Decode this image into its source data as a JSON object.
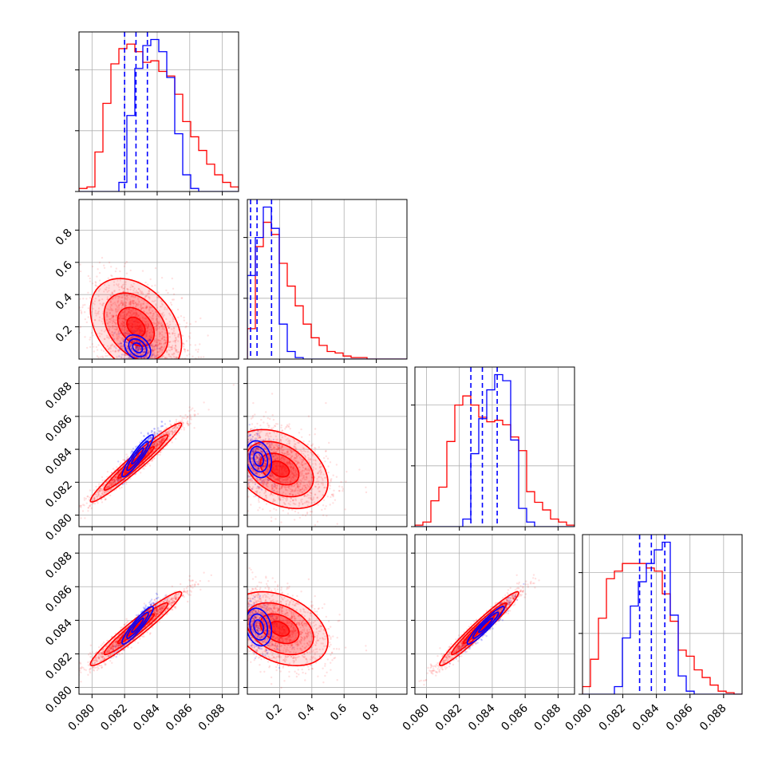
{
  "chart_data": {
    "type": "corner",
    "grid": true,
    "legend": "none",
    "colors": {
      "series_a": "#ff0000",
      "series_b": "#0000ff"
    },
    "params": [
      {
        "range": [
          0.0792,
          0.089
        ],
        "ticks": [
          0.08,
          0.082,
          0.084,
          0.086,
          0.088
        ],
        "tick_labels": [
          "0.080",
          "0.082",
          "0.084",
          "0.086",
          "0.088"
        ]
      },
      {
        "range": [
          0.0,
          0.99
        ],
        "ticks": [
          0.2,
          0.4,
          0.6,
          0.8
        ],
        "tick_labels": [
          "0.2",
          "0.4",
          "0.6",
          "0.8"
        ]
      },
      {
        "range": [
          0.0793,
          0.089
        ],
        "ticks": [
          0.08,
          0.082,
          0.084,
          0.086,
          0.088
        ],
        "tick_labels": [
          "0.080",
          "0.082",
          "0.084",
          "0.086",
          "0.088"
        ]
      },
      {
        "range": [
          0.0796,
          0.0891
        ],
        "ticks": [
          0.08,
          0.082,
          0.084,
          0.086,
          0.088
        ],
        "tick_labels": [
          "0.080",
          "0.082",
          "0.084",
          "0.086",
          "0.088"
        ]
      }
    ],
    "histograms": [
      {
        "param": 0,
        "red": {
          "edges_start": 0.0792,
          "bin_width": 0.00049,
          "counts": [
            2,
            3,
            26,
            58,
            84,
            94,
            97,
            92,
            85,
            86,
            79,
            76,
            64,
            46,
            36,
            27,
            18,
            11,
            6,
            3,
            1
          ]
        },
        "blue": {
          "edges_start": 0.0792,
          "bin_width": 0.00049,
          "counts": [
            0,
            0,
            0,
            0,
            0,
            6,
            50,
            81,
            96,
            100,
            92,
            75,
            38,
            11,
            2,
            0,
            0,
            0,
            0,
            0,
            0
          ]
        },
        "quantiles": [
          0.082,
          0.0827,
          0.0834
        ]
      },
      {
        "param": 1,
        "red": {
          "edges_start": 0.0,
          "bin_width": 0.0495,
          "counts": [
            20,
            74,
            90,
            82,
            63,
            48,
            35,
            23,
            14,
            9,
            5,
            4,
            2,
            1,
            1,
            0,
            0,
            0,
            0,
            0
          ]
        },
        "blue": {
          "edges_start": 0.0,
          "bin_width": 0.0495,
          "counts": [
            55,
            80,
            100,
            86,
            23,
            5,
            1,
            0,
            0,
            0,
            0,
            0,
            0,
            0,
            0,
            0,
            0,
            0,
            0,
            0
          ]
        },
        "quantiles": [
          0.02,
          0.06,
          0.15
        ]
      },
      {
        "param": 2,
        "red": {
          "edges_start": 0.0793,
          "bin_width": 0.000485,
          "counts": [
            1,
            3,
            17,
            26,
            56,
            80,
            86,
            80,
            72,
            69,
            70,
            67,
            59,
            50,
            23,
            16,
            11,
            5,
            3,
            1
          ]
        },
        "blue": {
          "edges_start": 0.0793,
          "bin_width": 0.000485,
          "counts": [
            0,
            0,
            0,
            0,
            0,
            0,
            5,
            48,
            71,
            90,
            100,
            96,
            57,
            12,
            3,
            0,
            0,
            0,
            0,
            0
          ]
        },
        "quantiles": [
          0.0827,
          0.0834,
          0.0843
        ]
      },
      {
        "param": 3,
        "red": {
          "edges_start": 0.0796,
          "bin_width": 0.000475,
          "counts": [
            5,
            23,
            50,
            76,
            81,
            86,
            86,
            86,
            83,
            81,
            66,
            48,
            29,
            25,
            16,
            11,
            6,
            2,
            1,
            0
          ]
        },
        "blue": {
          "edges_start": 0.0796,
          "bin_width": 0.000475,
          "counts": [
            0,
            0,
            0,
            0,
            5,
            37,
            58,
            74,
            86,
            95,
            100,
            52,
            12,
            2,
            0,
            0,
            0,
            0,
            0,
            0
          ]
        },
        "quantiles": [
          0.083,
          0.0837,
          0.0845
        ]
      }
    ],
    "pairs": [
      {
        "x_param": 0,
        "y_param": 1,
        "red": {
          "mean": [
            0.0827,
            0.2
          ],
          "std": [
            0.0014,
            0.15
          ],
          "corr": -0.35
        },
        "blue": {
          "mean": [
            0.0828,
            0.07
          ],
          "std": [
            0.0005,
            0.05
          ],
          "corr": -0.3
        }
      },
      {
        "x_param": 0,
        "y_param": 2,
        "red": {
          "mean": [
            0.0827,
            0.0832
          ],
          "std": [
            0.0014,
            0.0012
          ],
          "corr": 0.97
        },
        "blue": {
          "mean": [
            0.0828,
            0.0836
          ],
          "std": [
            0.0006,
            0.0008
          ],
          "corr": 0.92
        }
      },
      {
        "x_param": 1,
        "y_param": 2,
        "red": {
          "mean": [
            0.2,
            0.0828
          ],
          "std": [
            0.15,
            0.0012
          ],
          "corr": -0.35
        },
        "blue": {
          "mean": [
            0.07,
            0.0834
          ],
          "std": [
            0.05,
            0.0007
          ],
          "corr": -0.2
        }
      },
      {
        "x_param": 0,
        "y_param": 3,
        "red": {
          "mean": [
            0.0827,
            0.0835
          ],
          "std": [
            0.0014,
            0.0011
          ],
          "corr": 0.96
        },
        "blue": {
          "mean": [
            0.0828,
            0.0837
          ],
          "std": [
            0.0006,
            0.0007
          ],
          "corr": 0.92
        }
      },
      {
        "x_param": 1,
        "y_param": 3,
        "red": {
          "mean": [
            0.2,
            0.0835
          ],
          "std": [
            0.15,
            0.0011
          ],
          "corr": -0.35
        },
        "blue": {
          "mean": [
            0.07,
            0.0836
          ],
          "std": [
            0.05,
            0.0007
          ],
          "corr": -0.2
        }
      },
      {
        "x_param": 2,
        "y_param": 3,
        "red": {
          "mean": [
            0.0832,
            0.0835
          ],
          "std": [
            0.0012,
            0.0011
          ],
          "corr": 0.97
        },
        "blue": {
          "mean": [
            0.0836,
            0.0837
          ],
          "std": [
            0.0007,
            0.0007
          ],
          "corr": 0.94
        }
      }
    ]
  }
}
